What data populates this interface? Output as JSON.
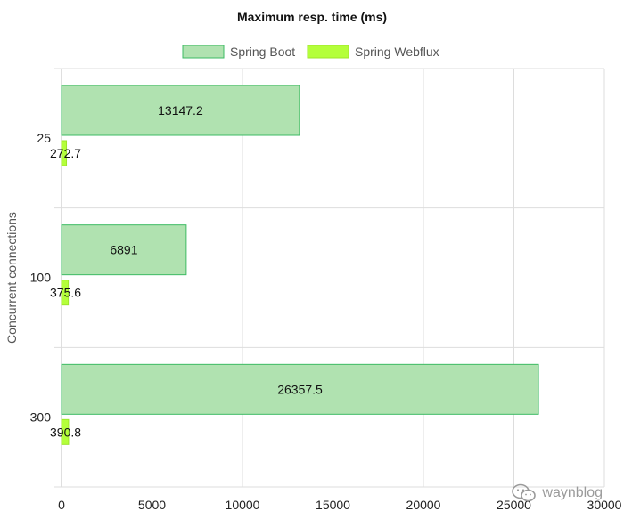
{
  "chart_data": {
    "type": "bar",
    "orientation": "horizontal",
    "title": "Maximum resp. time (ms)",
    "ylabel": "Concurrent connections",
    "xlabel": "",
    "categories": [
      "25",
      "100",
      "300"
    ],
    "series": [
      {
        "name": "Spring Boot",
        "values": [
          13147.2,
          6891,
          26357.5
        ],
        "labels": [
          "13147.2",
          "6891",
          "26357.5"
        ],
        "color": "#b0e2b0",
        "border": "#3dbb63"
      },
      {
        "name": "Spring Webflux",
        "values": [
          272.7,
          375.6,
          390.8
        ],
        "labels": [
          "272.7",
          "375.6",
          "390.8"
        ],
        "color": "#b4ff3a",
        "border": "#9ee62b"
      }
    ],
    "xlim": [
      0,
      30000
    ],
    "xticks": [
      0,
      5000,
      10000,
      15000,
      20000,
      25000,
      30000
    ],
    "xtick_labels": [
      "0",
      "5000",
      "10000",
      "15000",
      "20000",
      "25000",
      "30000"
    ],
    "grid": true,
    "legend_position": "top-center"
  },
  "watermark": {
    "text": "waynblog",
    "icon": "wechat-icon"
  }
}
